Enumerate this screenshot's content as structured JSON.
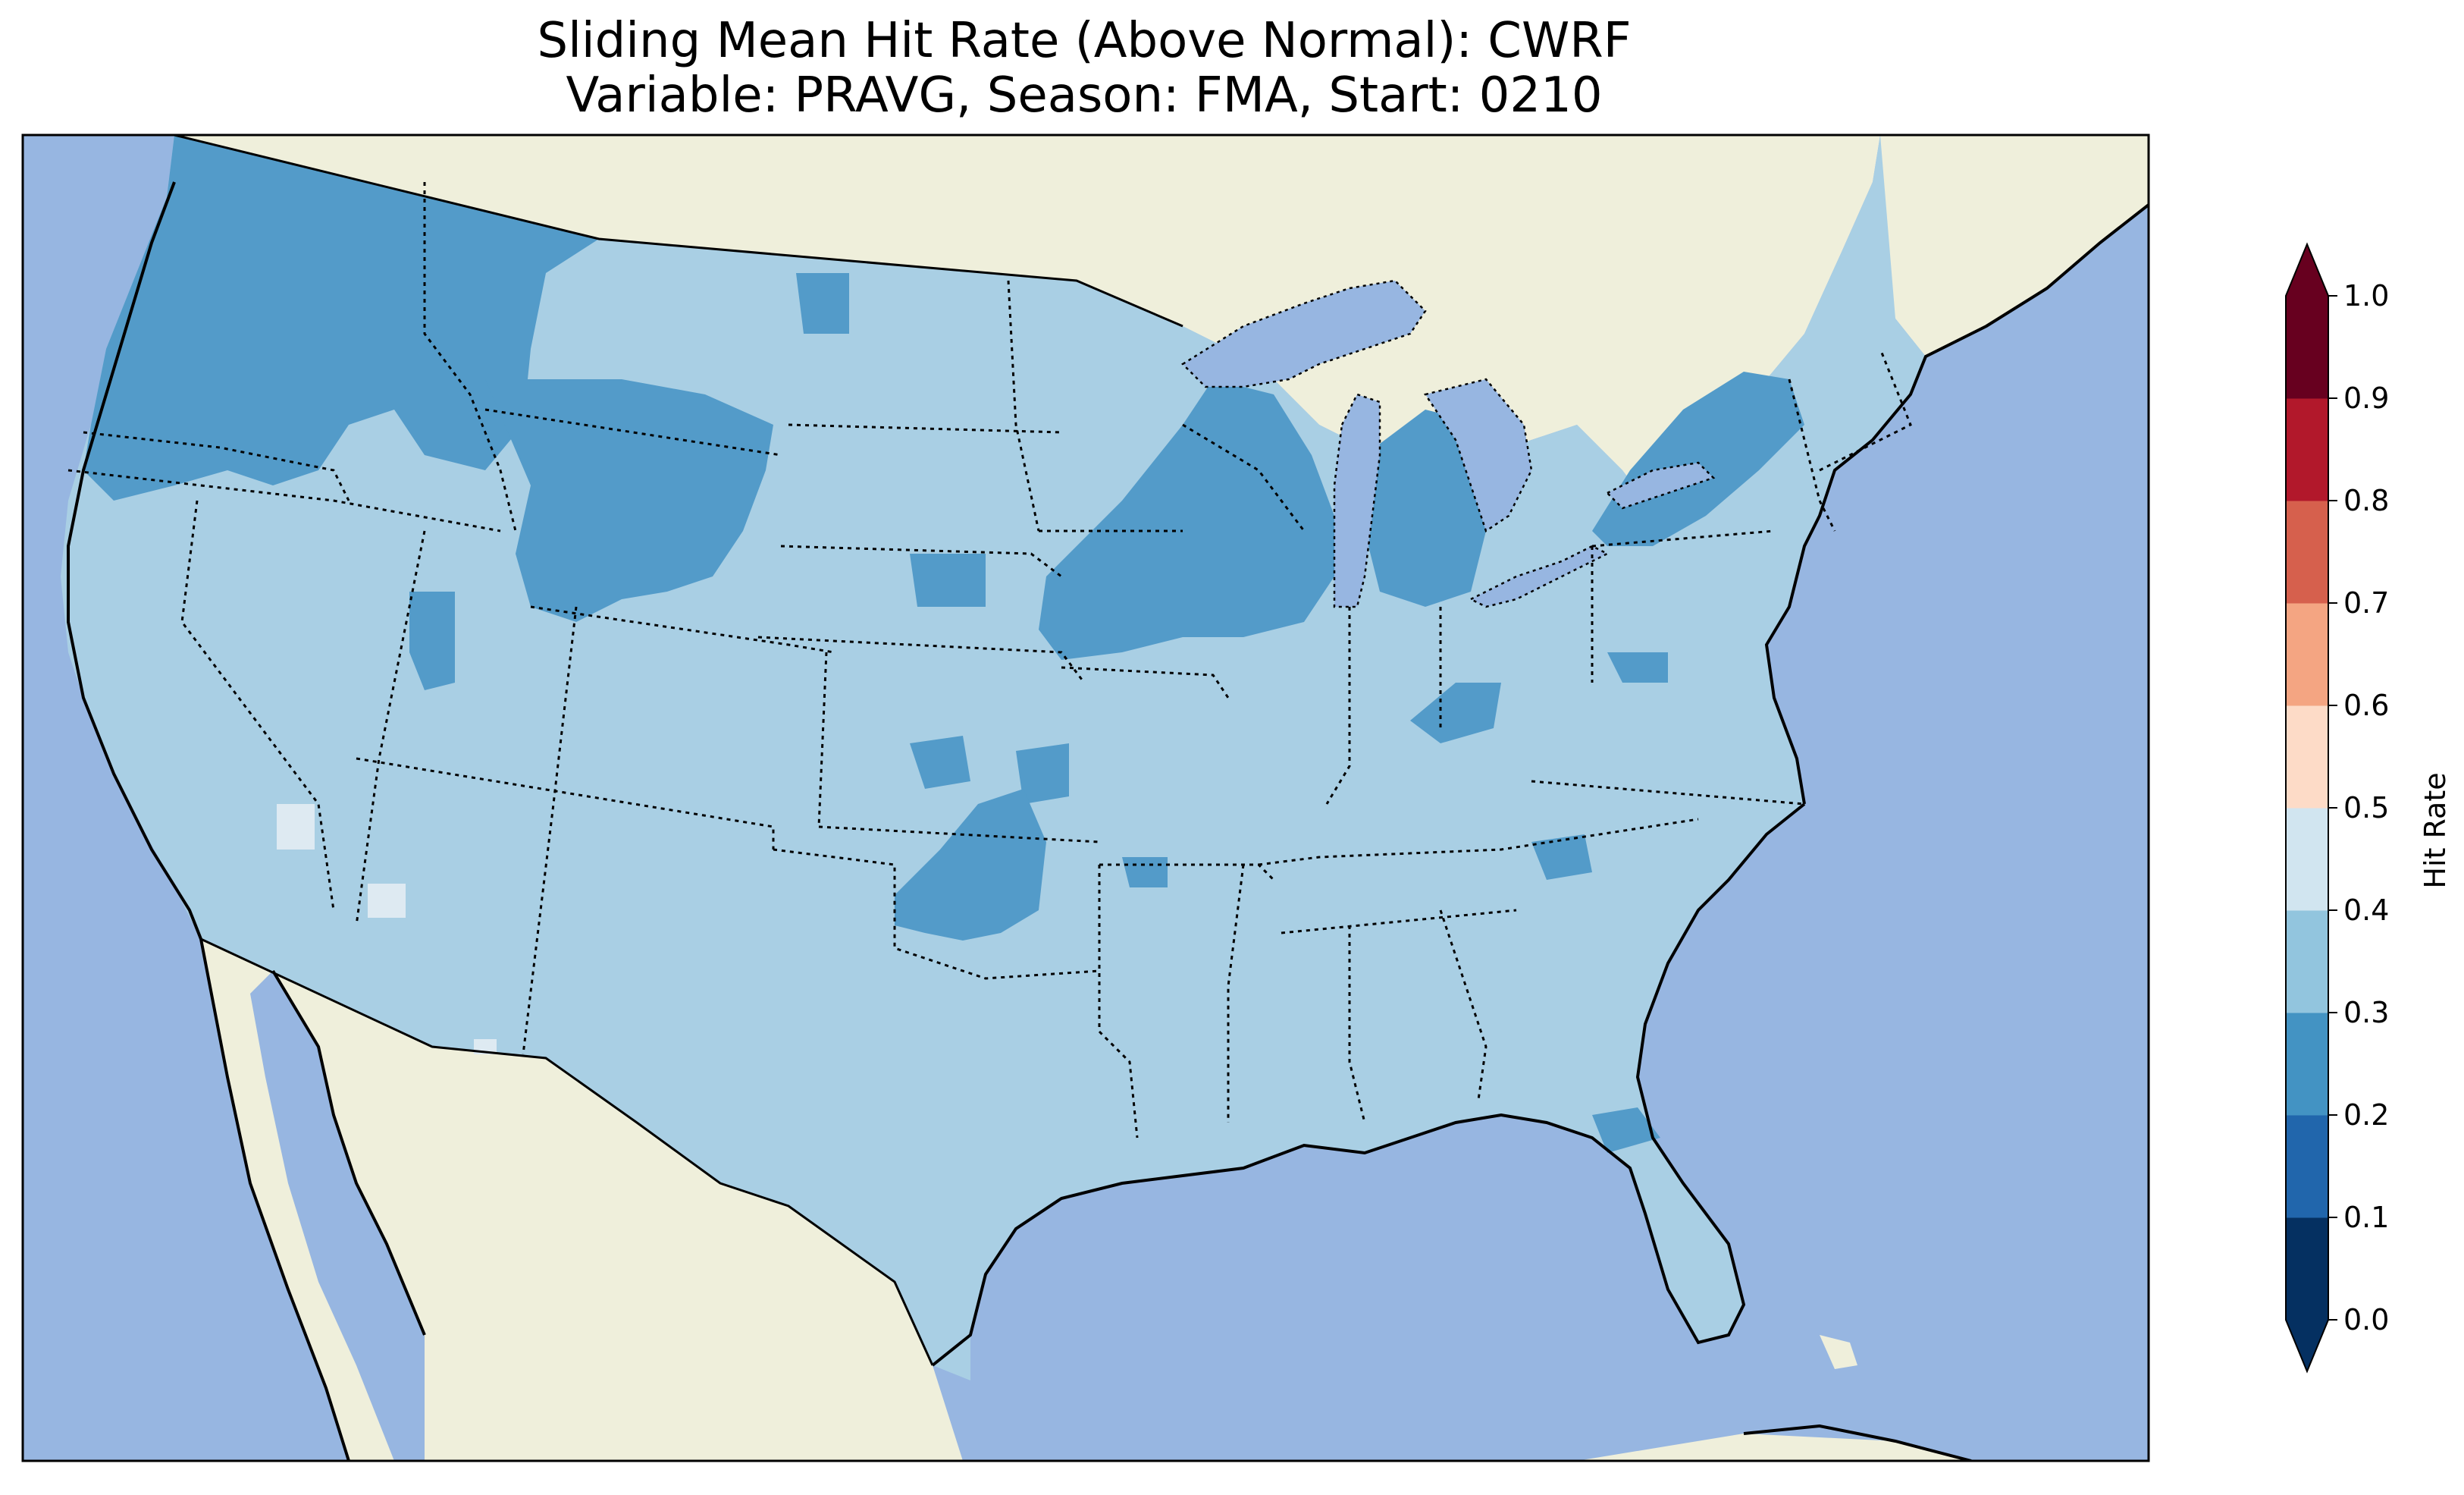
{
  "title_line1": "Sliding Mean Hit Rate (Above Normal): CWRF",
  "title_line2": "Variable: PRAVG, Season: FMA, Start: 0210",
  "colorbar": {
    "label": "Hit Rate",
    "ticks": [
      "0.0",
      "0.1",
      "0.2",
      "0.3",
      "0.4",
      "0.5",
      "0.6",
      "0.7",
      "0.8",
      "0.9",
      "1.0"
    ],
    "colors": [
      "#053061",
      "#2166ac",
      "#4393c3",
      "#92c5de",
      "#d1e5f0",
      "#fddbc7",
      "#f4a582",
      "#d6604d",
      "#b2182b",
      "#67001f"
    ],
    "under_color": "#053061",
    "over_color": "#67001f",
    "extend": "both"
  },
  "map_colors": {
    "ocean": "#97b6e1",
    "land": "#efefdb",
    "class_0.3_0.4": "#a9cfe4",
    "class_0.2_0.3": "#539bc9",
    "class_0.4_0.5": "#deeaf2"
  },
  "region": "Contiguous United States"
}
